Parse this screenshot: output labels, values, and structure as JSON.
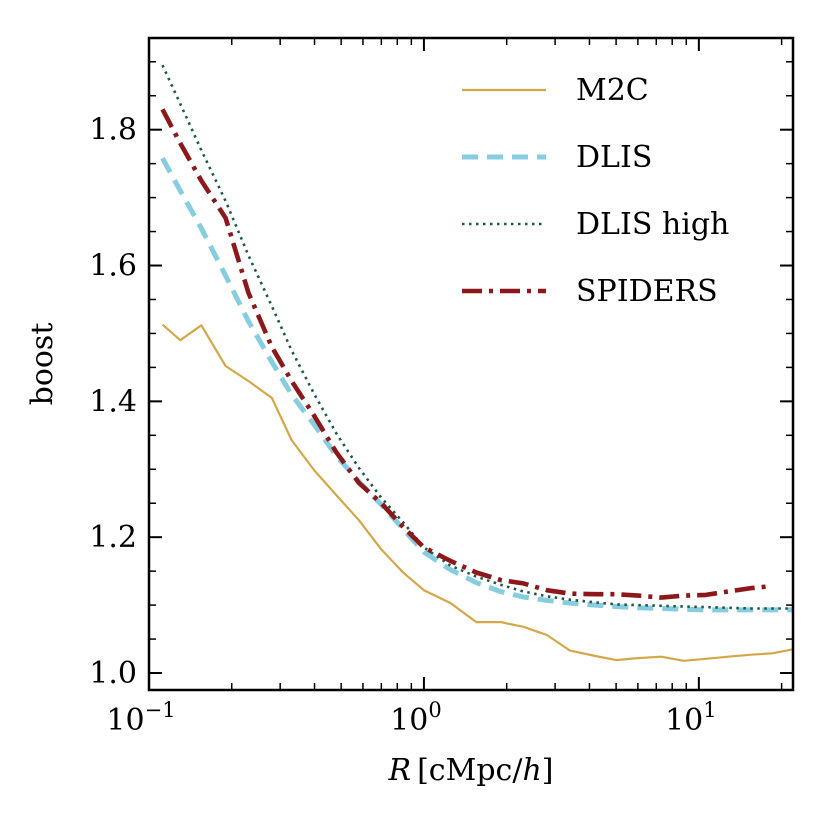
{
  "chart_data": {
    "type": "line",
    "title": "",
    "xlabel": "R [cMpc/h]",
    "xlabel_parts": {
      "var": "R",
      "open": "[",
      "unit": "cMpc/",
      "h": "h",
      "close": "]"
    },
    "ylabel": "boost",
    "xscale": "log",
    "xlim": [
      0.1,
      22
    ],
    "ylim": [
      0.975,
      1.935
    ],
    "grid": false,
    "legend_position": "top-right",
    "yticks": [
      {
        "value": 1.0,
        "label": "1.0"
      },
      {
        "value": 1.2,
        "label": "1.2"
      },
      {
        "value": 1.4,
        "label": "1.4"
      },
      {
        "value": 1.6,
        "label": "1.6"
      },
      {
        "value": 1.8,
        "label": "1.8"
      }
    ],
    "xticks": [
      {
        "value": 0.1,
        "base": "10",
        "exp": "−1"
      },
      {
        "value": 1,
        "base": "10",
        "exp": "0"
      },
      {
        "value": 10,
        "base": "10",
        "exp": "1"
      }
    ],
    "series": [
      {
        "name": "M2C",
        "color": "#d4a84a",
        "style": "solid",
        "width": 2.2,
        "x": [
          0.112,
          0.13,
          0.155,
          0.19,
          0.23,
          0.28,
          0.33,
          0.4,
          0.48,
          0.58,
          0.7,
          0.84,
          1.0,
          1.25,
          1.55,
          1.9,
          2.3,
          2.8,
          3.4,
          4.2,
          5.0,
          6.0,
          7.3,
          8.8,
          10.6,
          12.8,
          15.5,
          18.5,
          22.0
        ],
        "y": [
          1.513,
          1.49,
          1.512,
          1.452,
          1.43,
          1.405,
          1.343,
          1.298,
          1.262,
          1.225,
          1.182,
          1.148,
          1.122,
          1.103,
          1.075,
          1.075,
          1.068,
          1.056,
          1.033,
          1.025,
          1.019,
          1.022,
          1.024,
          1.018,
          1.021,
          1.024,
          1.027,
          1.029,
          1.035
        ]
      },
      {
        "name": "DLIS",
        "color": "#86cde0",
        "style": "dashed",
        "width": 5,
        "x": [
          0.112,
          0.13,
          0.155,
          0.19,
          0.23,
          0.28,
          0.33,
          0.4,
          0.48,
          0.58,
          0.7,
          0.84,
          1.0,
          1.25,
          1.55,
          1.9,
          2.3,
          2.8,
          3.4,
          4.2,
          5.0,
          6.0,
          7.3,
          8.8,
          10.6,
          12.8,
          15.5,
          18.5,
          22.0
        ],
        "y": [
          1.758,
          1.71,
          1.655,
          1.585,
          1.518,
          1.458,
          1.41,
          1.365,
          1.32,
          1.282,
          1.248,
          1.212,
          1.178,
          1.152,
          1.133,
          1.12,
          1.112,
          1.107,
          1.103,
          1.1,
          1.098,
          1.096,
          1.095,
          1.094,
          1.093,
          1.093,
          1.093,
          1.093,
          1.093
        ]
      },
      {
        "name": "DLIS high",
        "color": "#1d5a43",
        "style": "dotted",
        "width": 2.6,
        "x": [
          0.112,
          0.13,
          0.155,
          0.19,
          0.23,
          0.28,
          0.33,
          0.4,
          0.48,
          0.58,
          0.7,
          0.84,
          1.0,
          1.25,
          1.55,
          1.9,
          2.3,
          2.8,
          3.4,
          4.2,
          5.0,
          6.0,
          7.3,
          8.8,
          10.6,
          12.8,
          15.5,
          18.5,
          22.0
        ],
        "y": [
          1.895,
          1.838,
          1.77,
          1.695,
          1.615,
          1.54,
          1.475,
          1.41,
          1.353,
          1.302,
          1.258,
          1.222,
          1.185,
          1.158,
          1.142,
          1.13,
          1.12,
          1.113,
          1.108,
          1.104,
          1.101,
          1.1,
          1.099,
          1.098,
          1.097,
          1.096,
          1.095,
          1.095,
          1.095
        ]
      },
      {
        "name": "SPIDERS",
        "color": "#8c181b",
        "style": "dashdot",
        "width": 4.6,
        "x": [
          0.112,
          0.13,
          0.155,
          0.19,
          0.23,
          0.28,
          0.33,
          0.4,
          0.48,
          0.58,
          0.7,
          0.84,
          1.0,
          1.25,
          1.55,
          1.9,
          2.3,
          2.8,
          3.4,
          4.2,
          5.0,
          6.0,
          7.3,
          8.8,
          10.6,
          12.8,
          15.5,
          18.5
        ],
        "y": [
          1.83,
          1.78,
          1.725,
          1.67,
          1.56,
          1.48,
          1.43,
          1.378,
          1.325,
          1.28,
          1.25,
          1.215,
          1.185,
          1.165,
          1.148,
          1.137,
          1.132,
          1.122,
          1.117,
          1.116,
          1.116,
          1.114,
          1.111,
          1.114,
          1.115,
          1.12,
          1.125,
          1.128
        ]
      }
    ]
  }
}
